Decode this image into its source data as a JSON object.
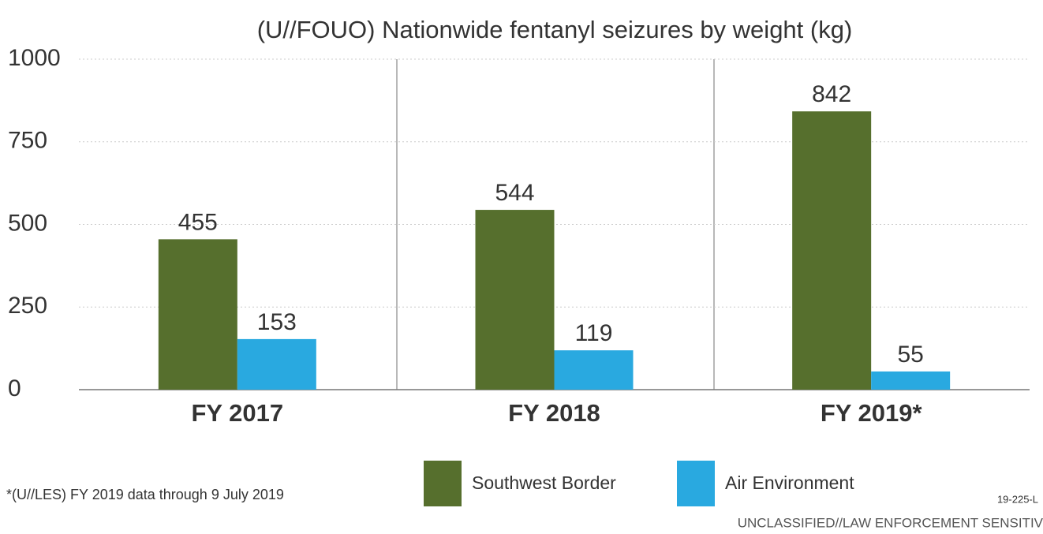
{
  "chart_data": {
    "type": "bar",
    "title": "(U//FOUO)  Nationwide fentanyl seizures by weight (kg)",
    "categories": [
      "FY 2017",
      "FY 2018",
      "FY 2019*"
    ],
    "series": [
      {
        "name": "Southwest Border",
        "color": "#566f2d",
        "values": [
          455,
          544,
          842
        ]
      },
      {
        "name": "Air Environment",
        "color": "#29a9e0",
        "values": [
          153,
          119,
          55
        ]
      }
    ],
    "ylim": [
      0,
      1000
    ],
    "yticks": [
      0,
      250,
      500,
      750,
      1000
    ],
    "grid": true,
    "legend": "bottom",
    "footnote": "*(U//LES) FY 2019 data through 9 July 2019",
    "code": "19-225-L",
    "classification": "UNCLASSIFIED//LAW ENFORCEMENT SENSITIV"
  }
}
